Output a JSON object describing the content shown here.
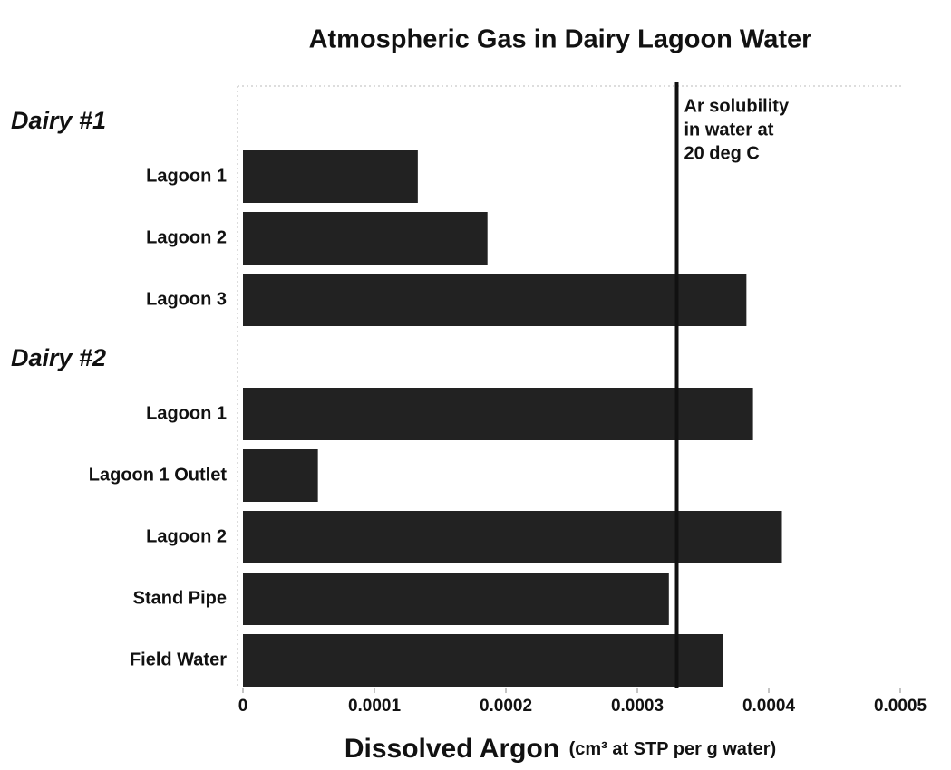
{
  "chart_data": {
    "type": "bar",
    "orientation": "horizontal",
    "title": "Atmospheric Gas in Dairy Lagoon Water",
    "xlabel": "Dissolved Argon",
    "xlabel_units": "(cm³ at STP per g water)",
    "color": "#222222",
    "groups": [
      {
        "label": "Dairy #1",
        "categories": [
          "Lagoon 1",
          "Lagoon 2",
          "Lagoon 3"
        ],
        "values": [
          0.000133,
          0.000186,
          0.000383
        ]
      },
      {
        "label": "Dairy #2",
        "categories": [
          "Lagoon 1",
          "Lagoon 1 Outlet",
          "Lagoon 2",
          "Stand Pipe",
          "Field Water"
        ],
        "values": [
          0.000388,
          5.7e-05,
          0.00041,
          0.000324,
          0.000365
        ]
      }
    ],
    "reference_line": {
      "value": 0.00033,
      "label": [
        "Ar solubility",
        "in water at",
        "20 deg C"
      ]
    },
    "xlim": [
      0,
      0.0005
    ],
    "xticks": [
      0,
      0.0001,
      0.0002,
      0.0003,
      0.0004,
      0.0005
    ]
  }
}
